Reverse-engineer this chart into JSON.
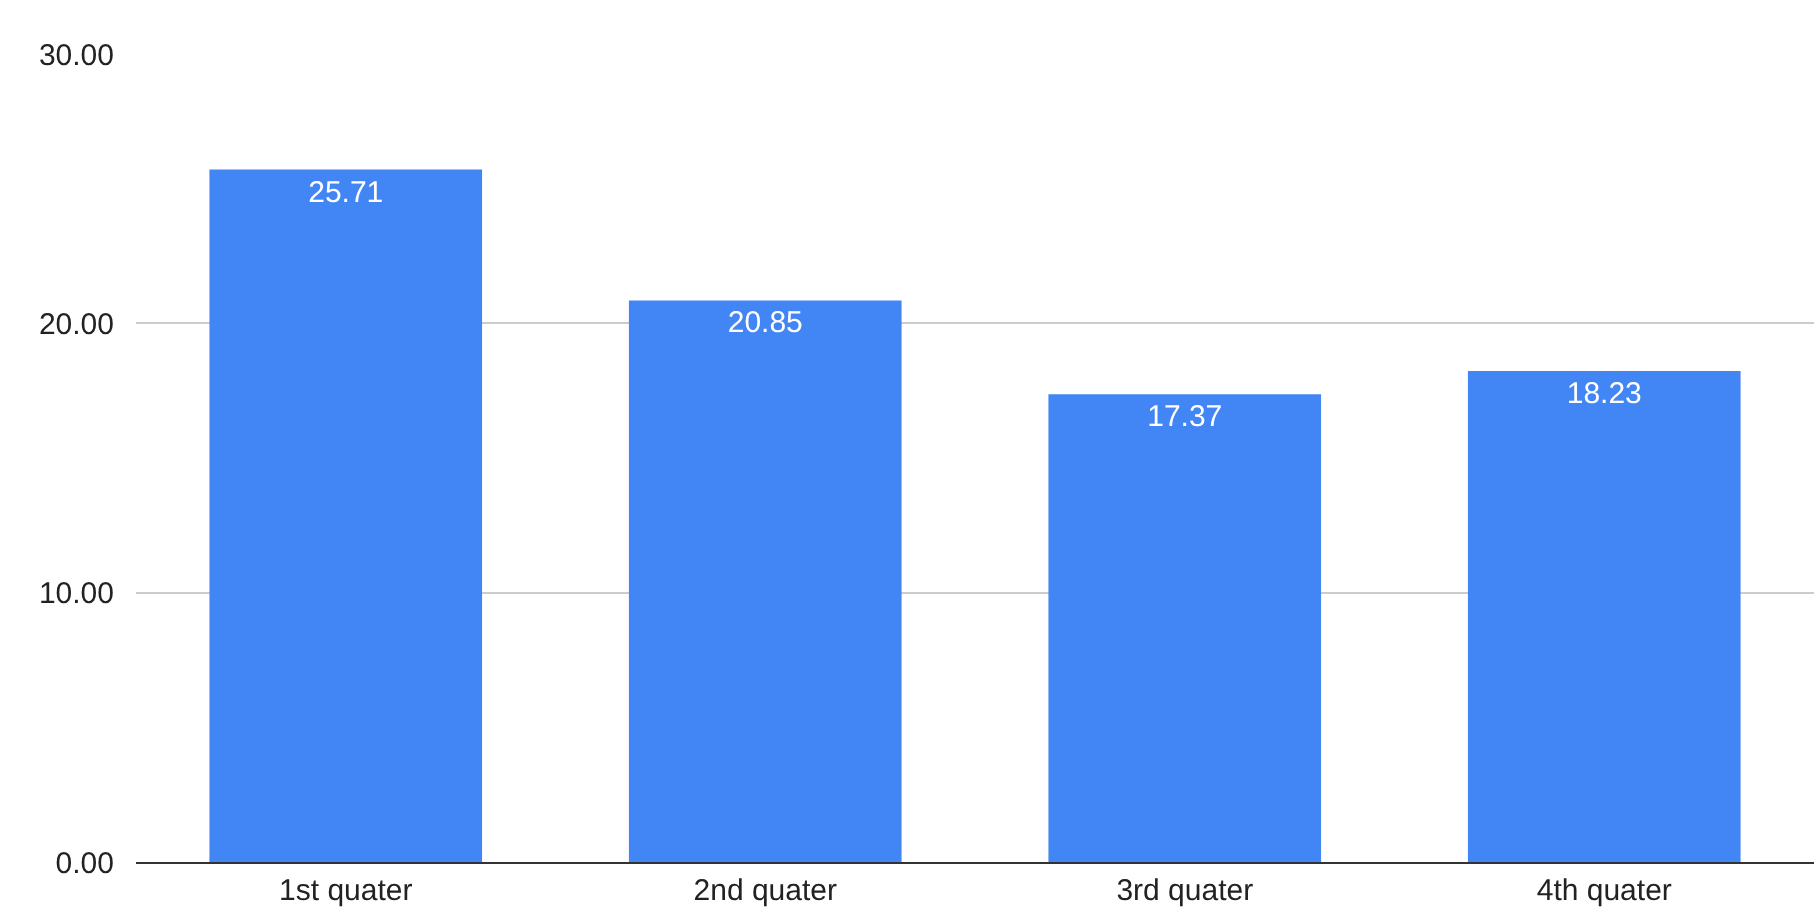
{
  "chart_data": {
    "type": "bar",
    "categories": [
      "1st quater",
      "2nd quater",
      "3rd quater",
      "4th quater"
    ],
    "values": [
      25.71,
      20.85,
      17.37,
      18.23
    ],
    "color": "#4285f4",
    "ylim": [
      0,
      30
    ],
    "yticks": [
      {
        "value": 0,
        "label": "0.00"
      },
      {
        "value": 10,
        "label": "10.00"
      },
      {
        "value": 20,
        "label": "20.00"
      },
      {
        "value": 30,
        "label": "30.00"
      }
    ],
    "grid": true,
    "data_labels": true
  }
}
